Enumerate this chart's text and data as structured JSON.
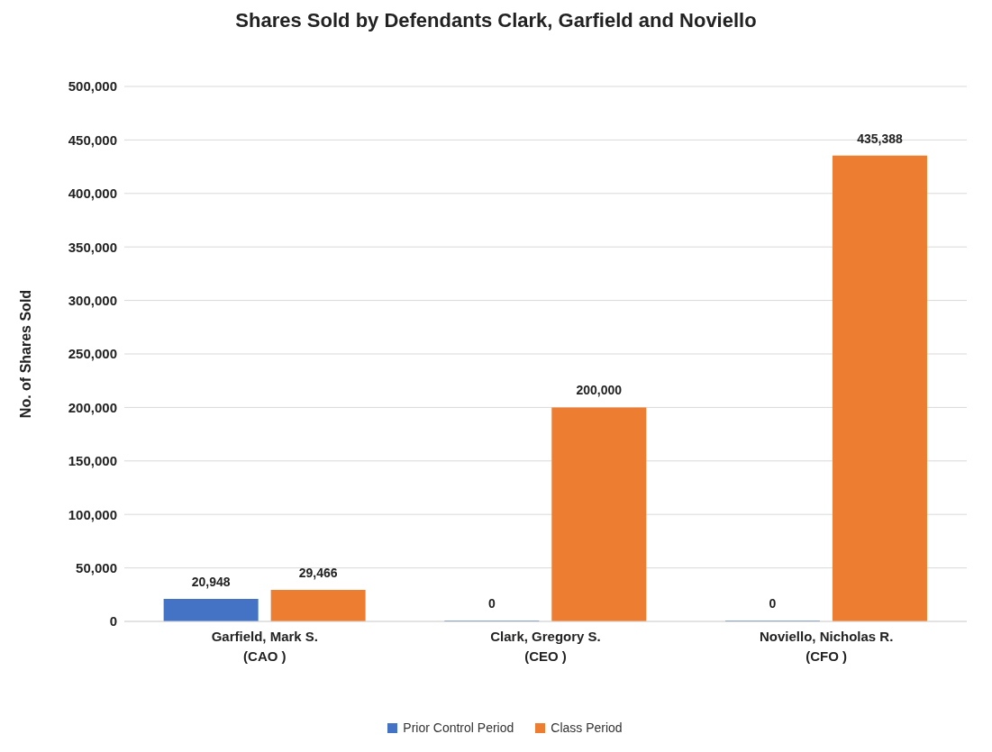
{
  "chart_data": {
    "type": "bar",
    "title": "Shares Sold by Defendants Clark, Garfield and Noviello",
    "ylabel": "No. of Shares Sold",
    "categories": [
      "Garfield, Mark S.\n(CAO )",
      "Clark, Gregory S.\n(CEO )",
      "Noviello, Nicholas R.\n(CFO )"
    ],
    "series": [
      {
        "name": "Prior Control Period",
        "color": "#4472c4",
        "values": [
          20948,
          0,
          0
        ],
        "value_labels": [
          "20,948",
          "0",
          "0"
        ]
      },
      {
        "name": "Class Period",
        "color": "#ed7d31",
        "values": [
          29466,
          200000,
          435388
        ],
        "value_labels": [
          "29,466",
          "200,000",
          "435,388"
        ]
      }
    ],
    "ylim": [
      0,
      500000
    ],
    "yticks": [
      0,
      {
        "value": 50000,
        "label": "50,000"
      },
      {
        "value": 100000,
        "label": "100,000"
      },
      {
        "value": 150000,
        "label": "150,000"
      },
      {
        "value": 200000,
        "label": "200,000"
      },
      {
        "value": 250000,
        "label": "250,000"
      },
      {
        "value": 300000,
        "label": "300,000"
      },
      {
        "value": 350000,
        "label": "350,000"
      },
      {
        "value": 400000,
        "label": "400,000"
      },
      {
        "value": 450000,
        "label": "450,000"
      },
      {
        "value": 500000,
        "label": "500,000"
      }
    ],
    "grid": "y",
    "legend": "bottom"
  }
}
